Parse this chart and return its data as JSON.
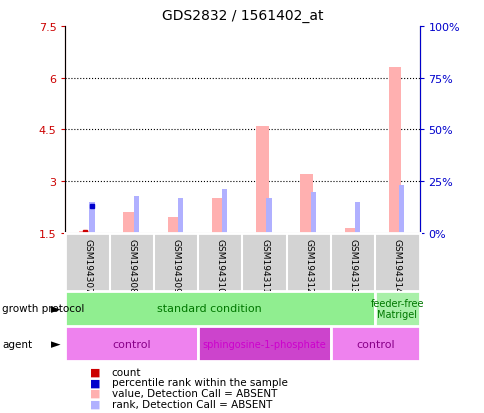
{
  "title": "GDS2832 / 1561402_at",
  "samples": [
    "GSM194307",
    "GSM194308",
    "GSM194309",
    "GSM194310",
    "GSM194311",
    "GSM194312",
    "GSM194313",
    "GSM194314"
  ],
  "value_bars": [
    1.55,
    2.1,
    1.95,
    2.5,
    4.6,
    3.2,
    1.65,
    6.3
  ],
  "rank_pct_bars": [
    15,
    18,
    17,
    21,
    17,
    20,
    15,
    23
  ],
  "count_dot_vals": [
    1.52,
    null,
    null,
    null,
    null,
    null,
    null,
    null
  ],
  "rank_dot_pcts": [
    13,
    null,
    null,
    null,
    null,
    null,
    null,
    null
  ],
  "ylim_left": [
    1.5,
    7.5
  ],
  "ylim_right": [
    0,
    100
  ],
  "yticks_left": [
    1.5,
    3.0,
    4.5,
    6.0,
    7.5
  ],
  "ytick_labels_left": [
    "1.5",
    "3",
    "4.5",
    "6",
    "7.5"
  ],
  "yticks_right": [
    0,
    25,
    50,
    75,
    100
  ],
  "ytick_labels_right": [
    "0%",
    "25%",
    "50%",
    "75%",
    "100%"
  ],
  "bar_color_value": "#ffb0b0",
  "bar_color_rank": "#b0b0ff",
  "dot_color_count": "#cc0000",
  "dot_color_rank": "#0000cc",
  "sample_bg": "#d3d3d3",
  "growth_standard_color": "#90ee90",
  "growth_feeder_color": "#a8f0a8",
  "agent_control_color": "#ee82ee",
  "agent_sphingo_color": "#cc44cc",
  "legend_items": [
    {
      "label": "count",
      "color": "#cc0000"
    },
    {
      "label": "percentile rank within the sample",
      "color": "#0000cc"
    },
    {
      "label": "value, Detection Call = ABSENT",
      "color": "#ffb0b0"
    },
    {
      "label": "rank, Detection Call = ABSENT",
      "color": "#b0b0ff"
    }
  ],
  "growth_protocol_label_color": "#007700",
  "agent_label_color": "#880088",
  "left_axis_color": "#cc0000",
  "right_axis_color": "#0000cc"
}
